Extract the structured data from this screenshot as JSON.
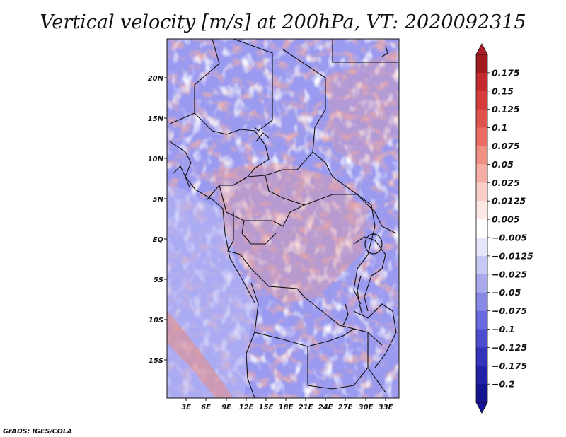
{
  "title": "Vertical velocity [m/s] at 200hPa, VT: 2020092315",
  "credit": "GrADS: IGES/COLA",
  "lat_ticks": [
    "20N",
    "15N",
    "10N",
    "5N",
    "EQ",
    "5S",
    "10S",
    "15S"
  ],
  "lon_ticks": [
    "3E",
    "6E",
    "9E",
    "12E",
    "15E",
    "18E",
    "21E",
    "24E",
    "27E",
    "30E",
    "33E"
  ],
  "colorbar": {
    "labels": [
      "0.175",
      "0.15",
      "0.125",
      "0.1",
      "0.075",
      "0.05",
      "0.025",
      "0.0125",
      "0.005",
      "−0.005",
      "−0.0125",
      "−0.025",
      "−0.05",
      "−0.075",
      "−0.1",
      "−0.125",
      "−0.175",
      "−0.2"
    ],
    "colors": [
      "#a01a1e",
      "#c22a2e",
      "#d63c3a",
      "#e0534c",
      "#ea6e64",
      "#f08f84",
      "#f5aea6",
      "#f9cec8",
      "#fde8e4",
      "#ffffff",
      "#e6e6fa",
      "#c8c8f4",
      "#a9a9ee",
      "#8888e6",
      "#6a6ade",
      "#4c4ccf",
      "#3333bb",
      "#2222a8",
      "#141490"
    ],
    "top_color": "#b01e2c",
    "bottom_color": "#16129a"
  }
}
